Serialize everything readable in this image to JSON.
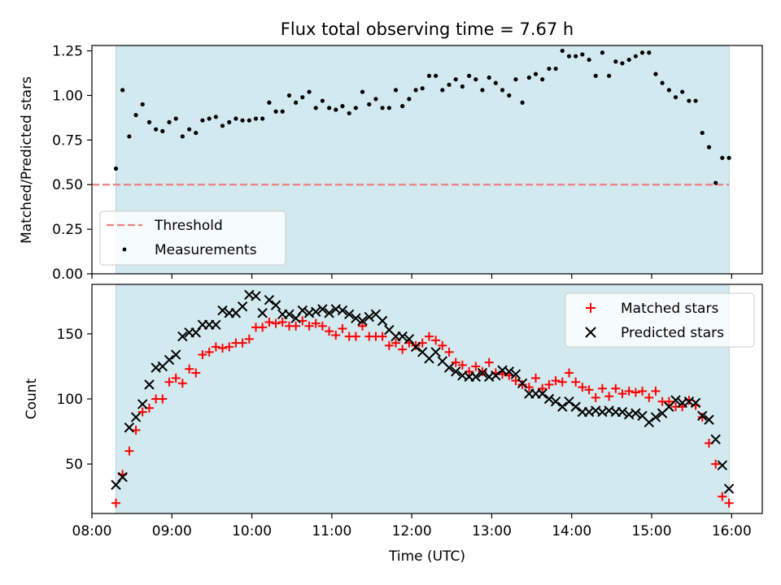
{
  "title": "Flux total observing time = 7.67 h",
  "colors": {
    "band": "#d2e9ef",
    "band_edge": "#b7d6e0",
    "threshold": "#f08080",
    "measurement": "#000000",
    "matched": "#ff0000",
    "predicted": "#000000"
  },
  "chart_data": [
    {
      "type": "scatter",
      "title": "Flux total observing time = 7.67 h",
      "xlabel": "",
      "ylabel": "Matched/Predicted stars",
      "x_unit": "hours UTC",
      "xlim": [
        8.0,
        16.3833
      ],
      "ylim": [
        0.0,
        1.28
      ],
      "yticks": [
        0.0,
        0.25,
        0.5,
        0.75,
        1.0,
        1.25
      ],
      "ytick_labels": [
        "0.00",
        "0.25",
        "0.50",
        "0.75",
        "1.00",
        "1.25"
      ],
      "grid": false,
      "legend": {
        "position": "lower-left",
        "entries": [
          "Threshold",
          "Measurements"
        ]
      },
      "observing_window": [
        8.3,
        15.97
      ],
      "threshold": {
        "name": "Threshold",
        "value": 0.5,
        "style": "dashed"
      },
      "series": [
        {
          "name": "Measurements",
          "marker": "dot",
          "x": [
            8.3,
            8.383,
            8.467,
            8.55,
            8.633,
            8.717,
            8.8,
            8.883,
            8.967,
            9.05,
            9.133,
            9.217,
            9.3,
            9.383,
            9.467,
            9.55,
            9.633,
            9.717,
            9.8,
            9.883,
            9.967,
            10.05,
            10.133,
            10.217,
            10.3,
            10.383,
            10.467,
            10.55,
            10.633,
            10.717,
            10.8,
            10.883,
            10.967,
            11.05,
            11.133,
            11.217,
            11.3,
            11.383,
            11.467,
            11.55,
            11.633,
            11.717,
            11.8,
            11.883,
            11.967,
            12.05,
            12.133,
            12.217,
            12.3,
            12.383,
            12.467,
            12.55,
            12.633,
            12.717,
            12.8,
            12.883,
            12.967,
            13.05,
            13.133,
            13.217,
            13.3,
            13.383,
            13.467,
            13.55,
            13.633,
            13.717,
            13.8,
            13.883,
            13.967,
            14.05,
            14.133,
            14.217,
            14.3,
            14.383,
            14.467,
            14.55,
            14.633,
            14.717,
            14.8,
            14.883,
            14.967,
            15.05,
            15.133,
            15.217,
            15.3,
            15.383,
            15.467,
            15.55,
            15.633,
            15.717,
            15.8,
            15.883,
            15.967
          ],
          "y": [
            0.59,
            1.03,
            0.77,
            0.89,
            0.95,
            0.85,
            0.81,
            0.8,
            0.85,
            0.87,
            0.77,
            0.81,
            0.79,
            0.86,
            0.87,
            0.88,
            0.83,
            0.85,
            0.87,
            0.86,
            0.86,
            0.87,
            0.87,
            0.96,
            0.91,
            0.91,
            1.0,
            0.96,
            0.99,
            1.02,
            0.93,
            0.97,
            0.93,
            0.92,
            0.94,
            0.9,
            0.93,
            1.02,
            0.95,
            0.98,
            0.93,
            0.93,
            1.03,
            0.94,
            0.98,
            1.03,
            1.04,
            1.11,
            1.11,
            1.03,
            1.06,
            1.09,
            1.05,
            1.11,
            1.09,
            1.03,
            1.1,
            1.07,
            1.03,
            1.0,
            1.09,
            0.96,
            1.1,
            1.12,
            1.09,
            1.15,
            1.15,
            1.25,
            1.22,
            1.22,
            1.23,
            1.2,
            1.11,
            1.24,
            1.11,
            1.19,
            1.18,
            1.2,
            1.22,
            1.24,
            1.24,
            1.12,
            1.07,
            1.03,
            0.99,
            1.02,
            0.97,
            0.97,
            0.79,
            0.71,
            0.51,
            0.65,
            0.65
          ]
        }
      ]
    },
    {
      "type": "scatter",
      "title": "",
      "xlabel": "Time (UTC)",
      "ylabel": "Count",
      "x_unit": "hours UTC",
      "xlim": [
        8.0,
        16.3833
      ],
      "ylim": [
        12,
        188
      ],
      "xticks": [
        8,
        9,
        10,
        11,
        12,
        13,
        14,
        15,
        16
      ],
      "xtick_labels": [
        "08:00",
        "09:00",
        "10:00",
        "11:00",
        "12:00",
        "13:00",
        "14:00",
        "15:00",
        "16:00"
      ],
      "yticks": [
        50,
        100,
        150
      ],
      "ytick_labels": [
        "50",
        "100",
        "150"
      ],
      "grid": false,
      "legend": {
        "position": "upper-right",
        "entries": [
          "Matched stars",
          "Predicted stars"
        ]
      },
      "observing_window": [
        8.3,
        15.97
      ],
      "series": [
        {
          "name": "Matched stars",
          "marker": "+",
          "x": [
            8.3,
            8.383,
            8.467,
            8.55,
            8.633,
            8.717,
            8.8,
            8.883,
            8.967,
            9.05,
            9.133,
            9.217,
            9.3,
            9.383,
            9.467,
            9.55,
            9.633,
            9.717,
            9.8,
            9.883,
            9.967,
            10.05,
            10.133,
            10.217,
            10.3,
            10.383,
            10.467,
            10.55,
            10.633,
            10.717,
            10.8,
            10.883,
            10.967,
            11.05,
            11.133,
            11.217,
            11.3,
            11.383,
            11.467,
            11.55,
            11.633,
            11.717,
            11.8,
            11.883,
            11.967,
            12.05,
            12.133,
            12.217,
            12.3,
            12.383,
            12.467,
            12.55,
            12.633,
            12.717,
            12.8,
            12.883,
            12.967,
            13.05,
            13.133,
            13.217,
            13.3,
            13.383,
            13.467,
            13.55,
            13.633,
            13.717,
            13.8,
            13.883,
            13.967,
            14.05,
            14.133,
            14.217,
            14.3,
            14.383,
            14.467,
            14.55,
            14.633,
            14.717,
            14.8,
            14.883,
            14.967,
            15.05,
            15.133,
            15.217,
            15.3,
            15.383,
            15.467,
            15.55,
            15.633,
            15.717,
            15.8,
            15.883,
            15.967
          ],
          "y": [
            20,
            42,
            60,
            76,
            90,
            93,
            100,
            100,
            113,
            116,
            112,
            123,
            120,
            134,
            136,
            140,
            139,
            140,
            143,
            143,
            146,
            155,
            155,
            159,
            158,
            159,
            156,
            156,
            160,
            156,
            158,
            156,
            152,
            149,
            154,
            148,
            148,
            156,
            148,
            148,
            148,
            141,
            143,
            138,
            143,
            141,
            143,
            148,
            145,
            141,
            136,
            128,
            126,
            121,
            125,
            121,
            128,
            120,
            119,
            118,
            114,
            111,
            109,
            116,
            108,
            111,
            114,
            113,
            120,
            113,
            109,
            107,
            101,
            108,
            102,
            108,
            104,
            106,
            105,
            106,
            101,
            106,
            98,
            98,
            94,
            94,
            99,
            95,
            86,
            66,
            50,
            25,
            20
          ]
        },
        {
          "name": "Predicted stars",
          "marker": "x",
          "x": [
            8.3,
            8.383,
            8.467,
            8.55,
            8.633,
            8.717,
            8.8,
            8.883,
            8.967,
            9.05,
            9.133,
            9.217,
            9.3,
            9.383,
            9.467,
            9.55,
            9.633,
            9.717,
            9.8,
            9.883,
            9.967,
            10.05,
            10.133,
            10.217,
            10.3,
            10.383,
            10.467,
            10.55,
            10.633,
            10.717,
            10.8,
            10.883,
            10.967,
            11.05,
            11.133,
            11.217,
            11.3,
            11.383,
            11.467,
            11.55,
            11.633,
            11.717,
            11.8,
            11.883,
            11.967,
            12.05,
            12.133,
            12.217,
            12.3,
            12.383,
            12.467,
            12.55,
            12.633,
            12.717,
            12.8,
            12.883,
            12.967,
            13.05,
            13.133,
            13.217,
            13.3,
            13.383,
            13.467,
            13.55,
            13.633,
            13.717,
            13.8,
            13.883,
            13.967,
            14.05,
            14.133,
            14.217,
            14.3,
            14.383,
            14.467,
            14.55,
            14.633,
            14.717,
            14.8,
            14.883,
            14.967,
            15.05,
            15.133,
            15.217,
            15.3,
            15.383,
            15.467,
            15.55,
            15.633,
            15.717,
            15.8,
            15.883,
            15.967
          ],
          "y": [
            34,
            40,
            78,
            86,
            96,
            111,
            124,
            125,
            130,
            134,
            148,
            151,
            151,
            157,
            157,
            157,
            168,
            166,
            166,
            171,
            180,
            179,
            166,
            176,
            172,
            165,
            165,
            162,
            168,
            166,
            167,
            169,
            166,
            169,
            168,
            165,
            162,
            160,
            163,
            165,
            160,
            153,
            148,
            148,
            146,
            140,
            136,
            131,
            136,
            129,
            124,
            121,
            118,
            117,
            117,
            120,
            117,
            118,
            122,
            121,
            119,
            112,
            104,
            104,
            104,
            100,
            98,
            94,
            98,
            94,
            90,
            90,
            91,
            90,
            91,
            90,
            90,
            88,
            89,
            87,
            82,
            86,
            89,
            94,
            99,
            97,
            98,
            97,
            87,
            84,
            69,
            49,
            31
          ]
        }
      ]
    }
  ]
}
